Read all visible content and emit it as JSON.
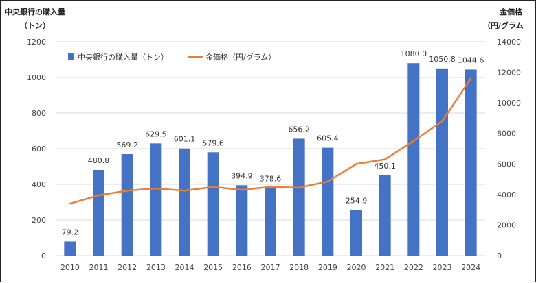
{
  "chart_data": {
    "type": "bar",
    "categories": [
      "2010",
      "2011",
      "2012",
      "2013",
      "2014",
      "2015",
      "2016",
      "2017",
      "2018",
      "2019",
      "2020",
      "2021",
      "2022",
      "2023",
      "2024"
    ],
    "series": [
      {
        "name": "中央銀行の購入量（トン）",
        "type": "bar",
        "axis": "left",
        "color": "#4472C4",
        "values": [
          79.2,
          480.8,
          569.2,
          629.5,
          601.1,
          579.6,
          394.9,
          378.6,
          656.2,
          605.4,
          254.9,
          450.1,
          1080.0,
          1050.8,
          1044.6
        ],
        "labels": [
          "79.2",
          "480.8",
          "569.2",
          "629.5",
          "601.1",
          "579.6",
          "394.9",
          "378.6",
          "656.2",
          "605.4",
          "254.9",
          "450.1",
          "1080.0",
          "1050.8",
          "1044.6"
        ]
      },
      {
        "name": "金価格（円/グラム）",
        "type": "line",
        "axis": "right",
        "color": "#ED7D31",
        "values": [
          3400,
          3950,
          4250,
          4400,
          4250,
          4500,
          4300,
          4500,
          4450,
          4850,
          6000,
          6300,
          7500,
          8800,
          11600
        ]
      }
    ],
    "left_axis": {
      "title_line1": "中央銀行の購入量",
      "title_line2": "（トン）",
      "range": [
        0,
        1200
      ],
      "ticks": [
        "0",
        "200",
        "400",
        "600",
        "800",
        "1000",
        "1200"
      ]
    },
    "right_axis": {
      "title_line1": "金価格",
      "title_line2": "（円/グラム",
      "range": [
        0,
        14000
      ],
      "ticks": [
        "0",
        "2000",
        "4000",
        "6000",
        "8000",
        "10000",
        "12000",
        "14000"
      ]
    },
    "legend_position": "top-left",
    "grid": true
  }
}
